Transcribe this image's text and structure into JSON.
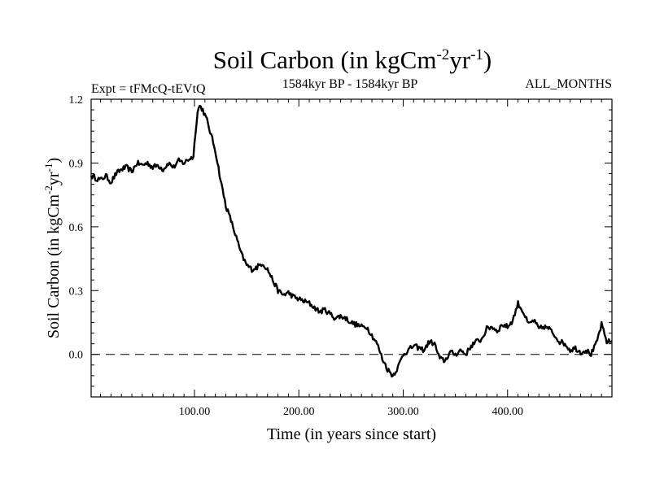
{
  "chart_data": {
    "type": "line",
    "title": "Soil Carbon (in kgCm",
    "title_sup1": "-2",
    "title_mid": "yr",
    "title_sup2": "-1",
    "title_end": ")",
    "subtitle_left": "Expt = tFMcQ-tEVtQ",
    "subtitle_center": "1584kyr BP - 1584kyr BP",
    "subtitle_right": "ALL_MONTHS",
    "xlabel": "Time (in years since start)",
    "ylabel": "Soil Carbon (in kgCm",
    "ylabel_sup1": "-2",
    "ylabel_mid": "yr",
    "ylabel_sup2": "-1",
    "ylabel_end": ")",
    "xlim": [
      1,
      500
    ],
    "ylim": [
      -0.2,
      1.2
    ],
    "xticks": [
      100,
      200,
      300,
      400
    ],
    "xtick_labels": [
      "100.00",
      "200.00",
      "300.00",
      "400.00"
    ],
    "yticks": [
      0.0,
      0.3,
      0.6,
      0.9,
      1.2
    ],
    "ytick_labels": [
      "0.0",
      "0.3",
      "0.6",
      "0.9",
      "1.2"
    ],
    "reference_line": 0.0,
    "series": [
      {
        "name": "Soil Carbon",
        "x": [
          1,
          5,
          10,
          15,
          20,
          25,
          30,
          35,
          40,
          45,
          50,
          55,
          60,
          65,
          70,
          75,
          80,
          85,
          90,
          95,
          99,
          101,
          103,
          105,
          108,
          112,
          116,
          120,
          125,
          130,
          135,
          140,
          145,
          150,
          155,
          160,
          165,
          170,
          175,
          180,
          185,
          190,
          195,
          200,
          205,
          210,
          215,
          220,
          225,
          230,
          235,
          240,
          245,
          250,
          255,
          260,
          265,
          270,
          275,
          280,
          285,
          290,
          295,
          300,
          305,
          310,
          315,
          320,
          325,
          330,
          335,
          340,
          345,
          350,
          355,
          360,
          365,
          370,
          375,
          380,
          385,
          390,
          395,
          400,
          405,
          410,
          415,
          420,
          425,
          430,
          435,
          440,
          445,
          450,
          455,
          460,
          465,
          470,
          475,
          480,
          485,
          490,
          495,
          500
        ],
        "values": [
          0.84,
          0.83,
          0.82,
          0.84,
          0.81,
          0.85,
          0.87,
          0.88,
          0.86,
          0.9,
          0.89,
          0.9,
          0.88,
          0.89,
          0.87,
          0.9,
          0.88,
          0.91,
          0.9,
          0.92,
          0.93,
          1.05,
          1.14,
          1.17,
          1.15,
          1.1,
          1.03,
          0.96,
          0.82,
          0.7,
          0.63,
          0.55,
          0.47,
          0.42,
          0.4,
          0.41,
          0.43,
          0.4,
          0.35,
          0.3,
          0.28,
          0.29,
          0.27,
          0.26,
          0.25,
          0.24,
          0.22,
          0.2,
          0.21,
          0.19,
          0.17,
          0.18,
          0.17,
          0.15,
          0.14,
          0.13,
          0.13,
          0.09,
          0.05,
          -0.02,
          -0.07,
          -0.1,
          -0.06,
          0.0,
          0.02,
          0.04,
          0.03,
          0.02,
          0.06,
          0.05,
          -0.02,
          -0.03,
          0.01,
          0.0,
          0.02,
          0.0,
          0.04,
          0.06,
          0.07,
          0.12,
          0.13,
          0.11,
          0.14,
          0.13,
          0.16,
          0.24,
          0.2,
          0.14,
          0.16,
          0.12,
          0.13,
          0.12,
          0.09,
          0.06,
          0.05,
          0.02,
          0.03,
          0.01,
          0.02,
          0.0,
          0.05,
          0.14,
          0.06,
          0.06
        ]
      }
    ]
  }
}
